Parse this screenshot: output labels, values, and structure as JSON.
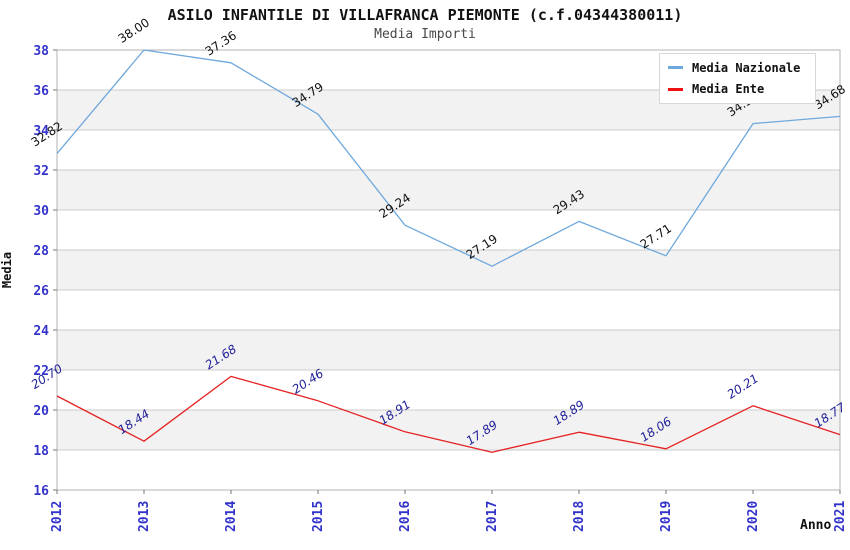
{
  "header": {
    "title": "ASILO INFANTILE DI VILLAFRANCA PIEMONTE (c.f.04344380011)",
    "subtitle": "Media Importi"
  },
  "axes": {
    "y_title": "Media",
    "x_title": "Anno"
  },
  "legend": {
    "position": "top-right",
    "items": [
      {
        "label": "Media Nazionale",
        "color": "#6fa8dc"
      },
      {
        "label": "Media Ente",
        "color": "#ee1111"
      }
    ]
  },
  "chart_data": {
    "type": "line",
    "title": "ASILO INFANTILE DI VILLAFRANCA PIEMONTE (c.f.04344380011)",
    "subtitle": "Media Importi",
    "xlabel": "Anno",
    "ylabel": "Media",
    "categories": [
      "2012",
      "2013",
      "2014",
      "2015",
      "2016",
      "2017",
      "2018",
      "2019",
      "2020",
      "2021"
    ],
    "series": [
      {
        "name": "Media Nazionale",
        "color": "#6fa8dc",
        "label_color": "#111111",
        "label_style": "normal",
        "values": [
          32.82,
          38.0,
          37.36,
          34.79,
          29.24,
          27.19,
          29.43,
          27.71,
          34.32,
          34.68
        ]
      },
      {
        "name": "Media Ente",
        "color": "#e52222",
        "label_color": "#22229b",
        "label_style": "italic",
        "values": [
          20.7,
          18.44,
          21.68,
          20.46,
          18.91,
          17.89,
          18.89,
          18.06,
          20.21,
          18.77
        ]
      }
    ],
    "ylim": [
      16,
      38
    ],
    "ytick_step": 2,
    "grid": true,
    "band_fill": "#f2f2f2",
    "gridline_color": "#cccccc",
    "plot_border_color": "#b3b3b3",
    "tick_color": "#777777",
    "tick_label_color": "#3333cc",
    "legend_position": "top-right"
  }
}
